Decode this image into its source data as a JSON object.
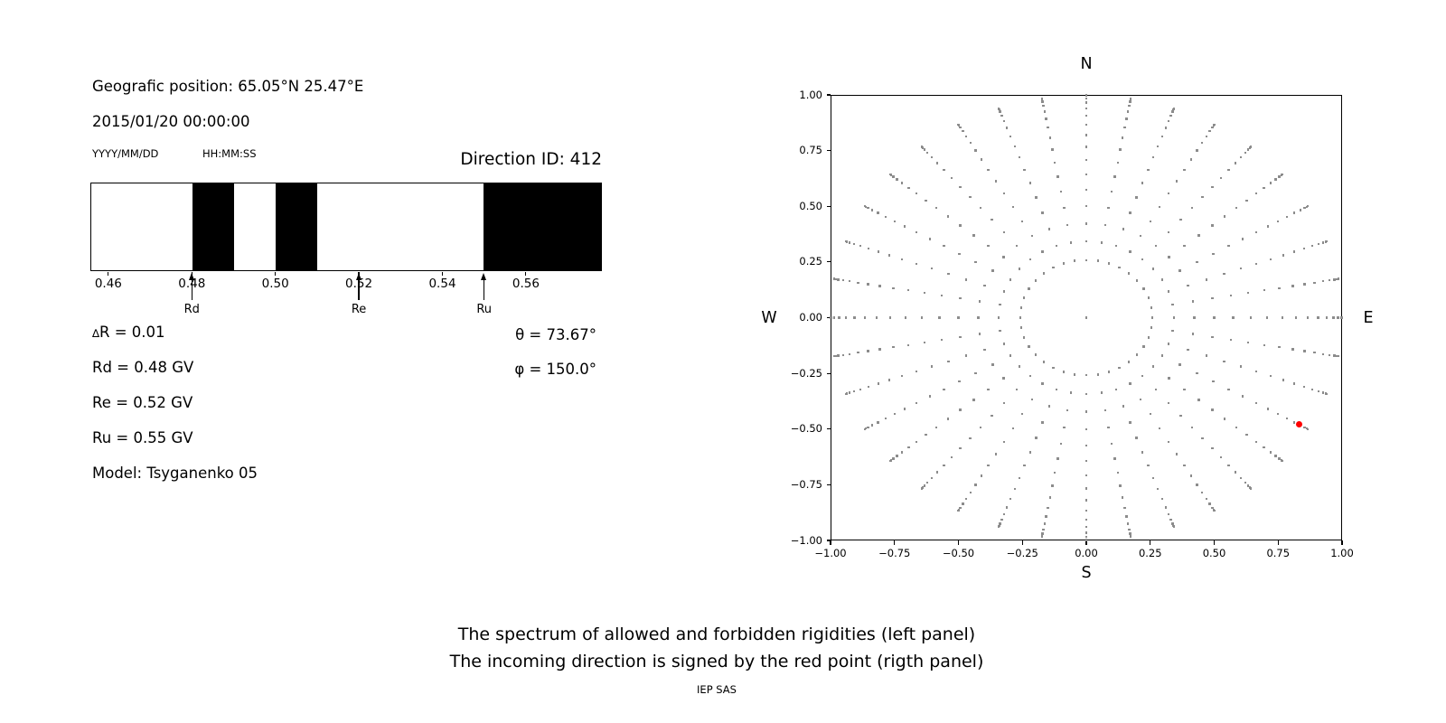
{
  "header": {
    "geographic_position": "Geografic position: 65.05°N 25.47°E",
    "datetime": "2015/01/20 00:00:00",
    "date_format_hint": "YYYY/MM/DD",
    "time_format_hint": "HH:MM:SS",
    "direction_id": "Direction ID: 412"
  },
  "params": {
    "delta_symbol": "∆",
    "delta_rest": "R = 0.01",
    "rd": "Rd = 0.48 GV",
    "re": "Re = 0.52 GV",
    "ru": "Ru = 0.55 GV",
    "model": "Model: Tsyganenko 05",
    "theta": "θ = 73.67°",
    "phi": "φ = 150.0°"
  },
  "captions": {
    "line1": "The spectrum of allowed and forbidden rigidities (left panel)",
    "line2": "The incoming direction is signed by the red point (rigth panel)",
    "credit": "IEP SAS"
  },
  "chart_data": [
    {
      "type": "band-spectrum",
      "description": "Rigidity spectrum: white = allowed, black = forbidden",
      "xlim": [
        0.4557,
        0.5782
      ],
      "xticks": [
        0.46,
        0.48,
        0.5,
        0.52,
        0.54,
        0.56
      ],
      "xtick_labels": [
        "0.46",
        "0.48",
        "0.50",
        "0.52",
        "0.54",
        "0.56"
      ],
      "allowed_color": "#ffffff",
      "forbidden_color": "#000000",
      "forbidden_bands": [
        [
          0.48,
          0.49
        ],
        [
          0.5,
          0.51
        ],
        [
          0.55,
          0.5782
        ]
      ],
      "markers": [
        {
          "label": "Rd",
          "value": 0.48
        },
        {
          "label": "Re",
          "value": 0.52
        },
        {
          "label": "Ru",
          "value": 0.55
        }
      ]
    },
    {
      "type": "scatter",
      "description": "Asymptotic direction grid; rays every 10° azimuth, dot radius = sin(zenith angle)",
      "compass_labels": {
        "top": "N",
        "bottom": "S",
        "left": "W",
        "right": "E"
      },
      "xlim": [
        -1,
        1
      ],
      "ylim": [
        -1,
        1
      ],
      "xticks": [
        -1,
        -0.75,
        -0.5,
        -0.25,
        0,
        0.25,
        0.5,
        0.75,
        1
      ],
      "yticks": [
        -1,
        -0.75,
        -0.5,
        -0.25,
        0,
        0.25,
        0.5,
        0.75,
        1
      ],
      "xtick_labels": [
        "−1.00",
        "−0.75",
        "−0.50",
        "−0.25",
        "0.00",
        "0.25",
        "0.50",
        "0.75",
        "1.00"
      ],
      "ytick_labels": [
        "−1.00",
        "−0.75",
        "−0.50",
        "−0.25",
        "0.00",
        "0.25",
        "0.50",
        "0.75",
        "1.00"
      ],
      "grid": true,
      "grid_style": "dotted",
      "dot_color": "#8c8c8c",
      "dot_marker": "square",
      "direction_grid": {
        "azimuths_deg": [
          0,
          10,
          20,
          30,
          40,
          50,
          60,
          70,
          80,
          90,
          100,
          110,
          120,
          130,
          140,
          150,
          160,
          170,
          180,
          190,
          200,
          210,
          220,
          230,
          240,
          250,
          260,
          270,
          280,
          290,
          300,
          310,
          320,
          330,
          340,
          350
        ],
        "zenith_angles_deg": [
          15,
          20,
          25,
          30,
          35,
          40,
          45,
          50,
          55,
          60,
          65,
          70,
          75,
          80,
          85,
          90
        ],
        "radii_sin_zenith": [
          0.2588,
          0.342,
          0.4226,
          0.5,
          0.5736,
          0.6428,
          0.7071,
          0.766,
          0.8192,
          0.866,
          0.9063,
          0.9397,
          0.9659,
          0.9848,
          0.9962,
          1.0
        ],
        "includes_center_point": true
      },
      "red_point": {
        "x": 0.831,
        "y": -0.48,
        "theta_deg": 73.67,
        "phi_deg": 150.0,
        "color": "#ff0000"
      }
    }
  ]
}
